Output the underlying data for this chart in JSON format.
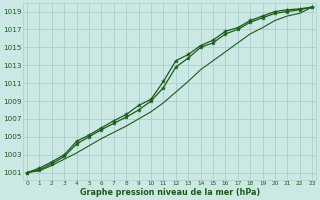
{
  "x": [
    0,
    1,
    2,
    3,
    4,
    5,
    6,
    7,
    8,
    9,
    10,
    11,
    12,
    13,
    14,
    15,
    16,
    17,
    18,
    19,
    20,
    21,
    22,
    23
  ],
  "line1": [
    1001.0,
    1001.5,
    1002.2,
    1003.0,
    1004.5,
    1005.2,
    1006.0,
    1006.8,
    1007.5,
    1008.5,
    1009.2,
    1011.2,
    1013.5,
    1014.2,
    1015.2,
    1015.8,
    1016.8,
    1017.2,
    1018.0,
    1018.5,
    1019.0,
    1019.2,
    1019.3,
    1019.5
  ],
  "line2": [
    1001.0,
    1001.3,
    1002.0,
    1002.8,
    1004.2,
    1005.0,
    1005.8,
    1006.5,
    1007.2,
    1008.0,
    1009.0,
    1010.5,
    1012.8,
    1013.8,
    1015.0,
    1015.5,
    1016.5,
    1017.0,
    1017.8,
    1018.3,
    1018.8,
    1019.0,
    1019.2,
    1019.5
  ],
  "line3_solid": [
    1001.0,
    1001.2,
    1001.8,
    1002.5,
    1003.2,
    1004.0,
    1004.8,
    1005.5,
    1006.2,
    1007.0,
    1007.8,
    1008.8,
    1010.0,
    1011.2,
    1012.5,
    1013.5,
    1014.5,
    1015.5,
    1016.5,
    1017.2,
    1018.0,
    1018.5,
    1018.8,
    1019.5
  ],
  "bg_color": "#cce8e4",
  "grid_color": "#aacfca",
  "line_color": "#1a5c1a",
  "xlabel": "Graphe pression niveau de la mer (hPa)",
  "xlabel_color": "#1a5c1a",
  "tick_color": "#1a5c1a",
  "ytick_labels": [
    1001,
    1003,
    1005,
    1007,
    1009,
    1011,
    1013,
    1015,
    1017,
    1019
  ],
  "xtick_labels": [
    0,
    1,
    2,
    3,
    4,
    5,
    6,
    7,
    8,
    9,
    10,
    11,
    12,
    13,
    14,
    15,
    16,
    17,
    18,
    19,
    20,
    21,
    22,
    23
  ],
  "ylim": [
    1000.2,
    1019.9
  ],
  "xlim": [
    -0.3,
    23.3
  ]
}
